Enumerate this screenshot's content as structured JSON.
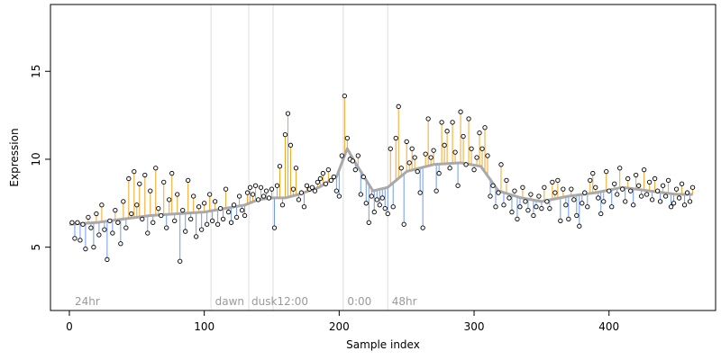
{
  "chart_data": {
    "type": "scatter",
    "xlabel": "Sample index",
    "ylabel": "Expression",
    "xlim": [
      -14,
      479
    ],
    "ylim": [
      1.4,
      18.8
    ],
    "x_ticks": [
      0,
      100,
      200,
      300,
      400
    ],
    "y_ticks": [
      5,
      10,
      15
    ],
    "colors": {
      "above": "#f5a623",
      "below": "#6f9ce8",
      "trend": "#a9a9a9",
      "divider": "#dddddd",
      "annotation": "#9a9a9a"
    },
    "phase_dividers": [
      105,
      133,
      151,
      203,
      236
    ],
    "phase_annotations": [
      {
        "x": 2,
        "label": "24hr"
      },
      {
        "x": 106,
        "label": "dawn"
      },
      {
        "x": 133,
        "label": "dusk"
      },
      {
        "x": 152,
        "label": "12:00"
      },
      {
        "x": 204,
        "label": "0:00"
      },
      {
        "x": 237,
        "label": "48hr"
      }
    ],
    "trend": [
      [
        0,
        6.3
      ],
      [
        20,
        6.4
      ],
      [
        40,
        6.6
      ],
      [
        60,
        6.8
      ],
      [
        80,
        6.9
      ],
      [
        100,
        7.0
      ],
      [
        115,
        7.2
      ],
      [
        130,
        7.4
      ],
      [
        140,
        7.7
      ],
      [
        150,
        7.8
      ],
      [
        160,
        7.8
      ],
      [
        170,
        8.0
      ],
      [
        185,
        8.4
      ],
      [
        198,
        9.0
      ],
      [
        206,
        10.6
      ],
      [
        212,
        9.8
      ],
      [
        225,
        8.2
      ],
      [
        236,
        8.4
      ],
      [
        250,
        9.3
      ],
      [
        270,
        9.7
      ],
      [
        290,
        9.8
      ],
      [
        305,
        9.6
      ],
      [
        318,
        8.2
      ],
      [
        335,
        7.8
      ],
      [
        350,
        7.6
      ],
      [
        370,
        7.9
      ],
      [
        390,
        8.1
      ],
      [
        410,
        8.4
      ],
      [
        430,
        8.2
      ],
      [
        450,
        8.0
      ],
      [
        462,
        8.0
      ]
    ],
    "points": [
      [
        2,
        6.4
      ],
      [
        4,
        5.5
      ],
      [
        6,
        6.4
      ],
      [
        8,
        5.4
      ],
      [
        10,
        6.3
      ],
      [
        12,
        4.9
      ],
      [
        14,
        6.7
      ],
      [
        16,
        6.1
      ],
      [
        18,
        5.0
      ],
      [
        20,
        6.9
      ],
      [
        22,
        5.7
      ],
      [
        24,
        7.4
      ],
      [
        26,
        6.0
      ],
      [
        28,
        4.3
      ],
      [
        30,
        6.5
      ],
      [
        32,
        5.8
      ],
      [
        34,
        7.1
      ],
      [
        36,
        6.4
      ],
      [
        38,
        5.2
      ],
      [
        40,
        7.6
      ],
      [
        42,
        6.1
      ],
      [
        44,
        8.9
      ],
      [
        46,
        6.9
      ],
      [
        48,
        9.3
      ],
      [
        50,
        7.4
      ],
      [
        52,
        8.6
      ],
      [
        54,
        6.6
      ],
      [
        56,
        9.1
      ],
      [
        58,
        5.8
      ],
      [
        60,
        8.2
      ],
      [
        62,
        6.4
      ],
      [
        64,
        9.5
      ],
      [
        66,
        7.2
      ],
      [
        68,
        6.8
      ],
      [
        70,
        8.7
      ],
      [
        72,
        6.1
      ],
      [
        74,
        7.7
      ],
      [
        76,
        9.2
      ],
      [
        78,
        6.5
      ],
      [
        80,
        8.0
      ],
      [
        82,
        4.2
      ],
      [
        84,
        7.1
      ],
      [
        86,
        5.9
      ],
      [
        88,
        8.8
      ],
      [
        90,
        6.6
      ],
      [
        92,
        7.9
      ],
      [
        94,
        5.6
      ],
      [
        96,
        7.3
      ],
      [
        98,
        6.0
      ],
      [
        100,
        7.5
      ],
      [
        102,
        6.3
      ],
      [
        104,
        8.0
      ],
      [
        106,
        6.5
      ],
      [
        108,
        7.6
      ],
      [
        110,
        6.3
      ],
      [
        112,
        7.2
      ],
      [
        114,
        6.6
      ],
      [
        116,
        8.3
      ],
      [
        118,
        7.0
      ],
      [
        120,
        6.4
      ],
      [
        122,
        7.4
      ],
      [
        124,
        6.7
      ],
      [
        126,
        7.9
      ],
      [
        128,
        7.1
      ],
      [
        130,
        6.8
      ],
      [
        132,
        8.1
      ],
      [
        134,
        8.4
      ],
      [
        136,
        8.0
      ],
      [
        138,
        8.5
      ],
      [
        140,
        7.7
      ],
      [
        142,
        8.4
      ],
      [
        144,
        7.9
      ],
      [
        146,
        8.2
      ],
      [
        148,
        7.8
      ],
      [
        150,
        8.3
      ],
      [
        152,
        6.1
      ],
      [
        154,
        8.5
      ],
      [
        156,
        9.6
      ],
      [
        158,
        7.4
      ],
      [
        160,
        11.4
      ],
      [
        162,
        12.6
      ],
      [
        164,
        10.8
      ],
      [
        166,
        8.3
      ],
      [
        168,
        9.5
      ],
      [
        170,
        7.7
      ],
      [
        172,
        8.1
      ],
      [
        174,
        7.3
      ],
      [
        176,
        8.5
      ],
      [
        178,
        8.3
      ],
      [
        180,
        8.4
      ],
      [
        182,
        8.2
      ],
      [
        184,
        8.7
      ],
      [
        186,
        8.9
      ],
      [
        188,
        9.2
      ],
      [
        190,
        8.6
      ],
      [
        192,
        9.4
      ],
      [
        194,
        8.8
      ],
      [
        196,
        9.0
      ],
      [
        198,
        8.2
      ],
      [
        200,
        7.9
      ],
      [
        202,
        10.2
      ],
      [
        204,
        13.6
      ],
      [
        206,
        11.2
      ],
      [
        208,
        10.0
      ],
      [
        210,
        9.9
      ],
      [
        212,
        9.4
      ],
      [
        214,
        10.2
      ],
      [
        216,
        8.0
      ],
      [
        218,
        9.0
      ],
      [
        220,
        7.5
      ],
      [
        222,
        6.4
      ],
      [
        224,
        7.9
      ],
      [
        226,
        7.0
      ],
      [
        228,
        7.7
      ],
      [
        230,
        7.4
      ],
      [
        232,
        7.8
      ],
      [
        234,
        7.2
      ],
      [
        236,
        6.9
      ],
      [
        238,
        10.6
      ],
      [
        240,
        7.3
      ],
      [
        242,
        11.2
      ],
      [
        244,
        13.0
      ],
      [
        246,
        9.5
      ],
      [
        248,
        6.3
      ],
      [
        250,
        11.0
      ],
      [
        252,
        9.8
      ],
      [
        254,
        10.6
      ],
      [
        256,
        10.1
      ],
      [
        258,
        9.3
      ],
      [
        260,
        8.1
      ],
      [
        262,
        6.1
      ],
      [
        264,
        10.3
      ],
      [
        266,
        12.3
      ],
      [
        268,
        10.1
      ],
      [
        270,
        10.5
      ],
      [
        272,
        8.2
      ],
      [
        274,
        9.2
      ],
      [
        276,
        12.1
      ],
      [
        278,
        10.8
      ],
      [
        280,
        11.6
      ],
      [
        282,
        9.5
      ],
      [
        284,
        12.1
      ],
      [
        286,
        10.4
      ],
      [
        288,
        8.5
      ],
      [
        290,
        12.7
      ],
      [
        292,
        11.3
      ],
      [
        294,
        9.7
      ],
      [
        296,
        12.3
      ],
      [
        298,
        10.6
      ],
      [
        300,
        9.4
      ],
      [
        302,
        10.1
      ],
      [
        304,
        11.5
      ],
      [
        306,
        10.6
      ],
      [
        308,
        11.8
      ],
      [
        310,
        10.2
      ],
      [
        312,
        7.9
      ],
      [
        314,
        8.5
      ],
      [
        316,
        7.3
      ],
      [
        318,
        8.1
      ],
      [
        320,
        9.7
      ],
      [
        322,
        7.4
      ],
      [
        324,
        8.8
      ],
      [
        326,
        7.8
      ],
      [
        328,
        7.0
      ],
      [
        330,
        8.2
      ],
      [
        332,
        6.6
      ],
      [
        334,
        7.3
      ],
      [
        336,
        8.4
      ],
      [
        338,
        7.6
      ],
      [
        340,
        7.1
      ],
      [
        342,
        8.0
      ],
      [
        344,
        6.8
      ],
      [
        346,
        7.3
      ],
      [
        348,
        7.9
      ],
      [
        350,
        7.2
      ],
      [
        352,
        8.4
      ],
      [
        354,
        7.6
      ],
      [
        356,
        7.2
      ],
      [
        358,
        8.7
      ],
      [
        360,
        8.1
      ],
      [
        362,
        8.8
      ],
      [
        364,
        6.5
      ],
      [
        366,
        8.3
      ],
      [
        368,
        7.4
      ],
      [
        370,
        6.6
      ],
      [
        372,
        8.3
      ],
      [
        374,
        7.7
      ],
      [
        376,
        6.8
      ],
      [
        378,
        6.2
      ],
      [
        380,
        7.5
      ],
      [
        382,
        8.1
      ],
      [
        384,
        7.3
      ],
      [
        386,
        8.8
      ],
      [
        388,
        9.2
      ],
      [
        390,
        8.4
      ],
      [
        392,
        7.8
      ],
      [
        394,
        6.9
      ],
      [
        396,
        7.6
      ],
      [
        398,
        9.3
      ],
      [
        400,
        8.2
      ],
      [
        402,
        7.3
      ],
      [
        404,
        8.6
      ],
      [
        406,
        8.0
      ],
      [
        408,
        9.5
      ],
      [
        410,
        8.3
      ],
      [
        412,
        7.6
      ],
      [
        414,
        8.9
      ],
      [
        416,
        8.2
      ],
      [
        418,
        7.4
      ],
      [
        420,
        9.1
      ],
      [
        422,
        8.5
      ],
      [
        424,
        7.9
      ],
      [
        426,
        9.4
      ],
      [
        428,
        8.0
      ],
      [
        430,
        8.7
      ],
      [
        432,
        7.7
      ],
      [
        434,
        8.9
      ],
      [
        436,
        8.2
      ],
      [
        438,
        7.6
      ],
      [
        440,
        8.5
      ],
      [
        442,
        7.9
      ],
      [
        444,
        8.8
      ],
      [
        446,
        7.3
      ],
      [
        448,
        7.5
      ],
      [
        450,
        8.3
      ],
      [
        452,
        7.8
      ],
      [
        454,
        8.6
      ],
      [
        456,
        7.4
      ],
      [
        458,
        8.1
      ],
      [
        460,
        7.6
      ],
      [
        462,
        8.4
      ]
    ]
  }
}
